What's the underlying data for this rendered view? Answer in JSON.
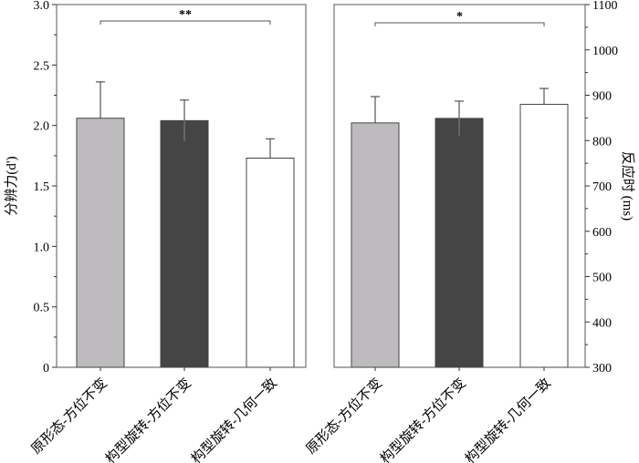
{
  "chart_data": [
    {
      "type": "bar",
      "ylabel": "分辨力(d')",
      "ylim": [
        0,
        3
      ],
      "yticks": [
        "0",
        "0.5",
        "1.0",
        "1.5",
        "2.0",
        "2.5",
        "3.0"
      ],
      "categories": [
        "原形态-方位不变",
        "构型旋转-方位不变",
        "构型旋转-几何一致"
      ],
      "values": [
        2.06,
        2.04,
        1.73
      ],
      "errors": [
        0.3,
        0.17,
        0.16
      ],
      "colors": [
        "#bdbbbe",
        "#454545",
        "#ffffff"
      ],
      "significance": {
        "from": 0,
        "to": 2,
        "label": "**"
      }
    },
    {
      "type": "bar",
      "ylabel": "反应时 (ms)",
      "ylim": [
        300,
        1100
      ],
      "yticks": [
        "300",
        "400",
        "500",
        "600",
        "700",
        "800",
        "900",
        "1000",
        "1100"
      ],
      "categories": [
        "原形态-方位不变",
        "构型旋转-方位不变",
        "构型旋转-几何一致"
      ],
      "values": [
        839,
        849,
        880
      ],
      "errors": [
        58,
        38,
        35
      ],
      "colors": [
        "#bdbbbe",
        "#454545",
        "#ffffff"
      ],
      "significance": {
        "from": 0,
        "to": 2,
        "label": "*"
      }
    }
  ]
}
